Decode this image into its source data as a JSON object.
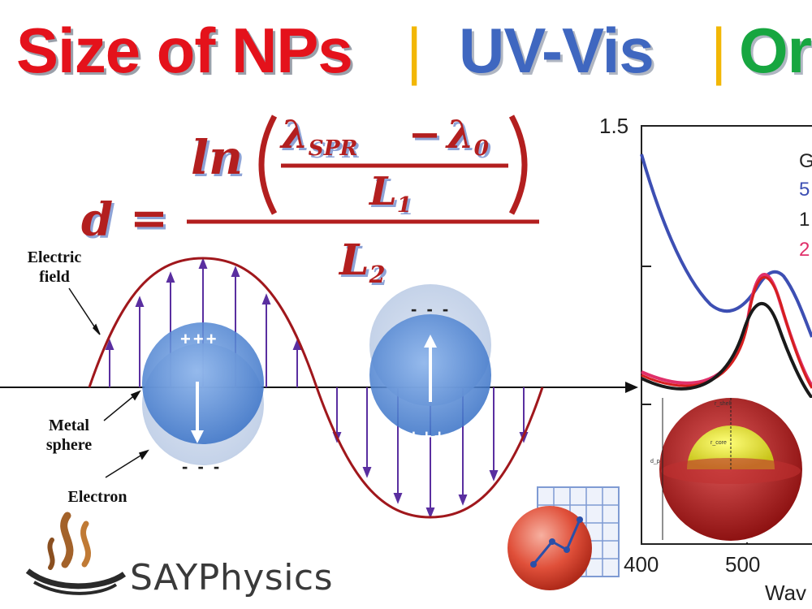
{
  "title": {
    "part1": "Size of NPs",
    "sep1": "|",
    "part2": "UV-Vis",
    "sep2": "|",
    "part3": "Or"
  },
  "formula": {
    "d": "d",
    "equals": "=",
    "ln": "ln",
    "lambda_spr": "λ",
    "spr_sub": "SPR",
    "minus": "−",
    "lambda_0": "λ",
    "zero_sub": "0",
    "L1": "L",
    "L1_sub": "1",
    "L2": "L",
    "L2_sub": "2"
  },
  "diagram": {
    "electric_field_line1": "Electric",
    "electric_field_line2": "field",
    "metal_sphere_line1": "Metal",
    "metal_sphere_line2": "sphere",
    "electron": "Electron",
    "charge_plus": "+++",
    "charge_minus": "- - -"
  },
  "brand": {
    "name": "SAYPhysics"
  },
  "plot": {
    "y_ticks": [
      "1.5"
    ],
    "x_ticks": [
      "400",
      "500"
    ],
    "x_label_partial": "Wav",
    "legend_partial": [
      "G",
      "5",
      "1",
      "2"
    ],
    "legend_colors": [
      "#222222",
      "#3d4fb3",
      "#222222",
      "#e0306a"
    ],
    "inset_labels": [
      "r_shell",
      "r_core",
      "d_p"
    ]
  },
  "colors": {
    "title_red": "#e4121b",
    "title_blue": "#3f67c0",
    "title_green": "#17a640",
    "separator": "#f2b705",
    "formula": "#b31f1f",
    "wave": "#a0171c",
    "arrows": "#5a2fa0",
    "sphere": "#5a8fd8"
  }
}
